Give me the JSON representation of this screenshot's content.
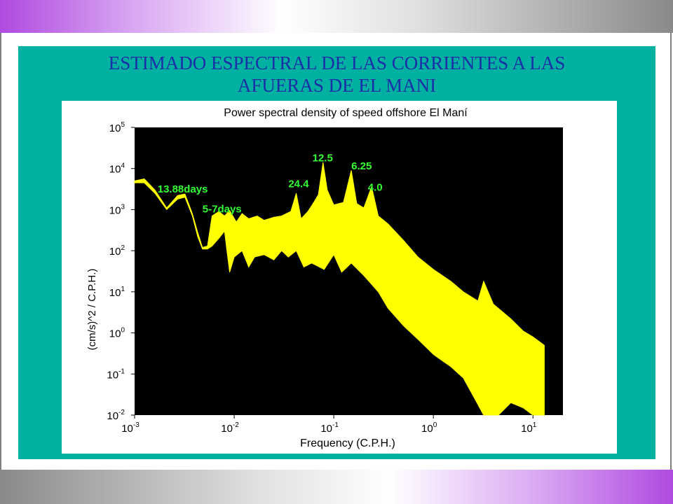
{
  "slide": {
    "title_line1": "ESTIMADO ESPECTRAL DE LAS CORRIENTES A LAS",
    "title_line2": "AFUERAS DE EL MANI"
  },
  "colors": {
    "teal_panel": "#00b0a0",
    "title_text": "#1a2fa8",
    "plot_background": "#000000",
    "spectrum": "#ffff00",
    "annotation": "#33ff33"
  },
  "chart_data": {
    "type": "line",
    "title": "Power spectral density of speed offshore El Maní",
    "xlabel": "Frequency (C.P.H.)",
    "ylabel": "(cm/s)^2 / C.P.H.)",
    "x_scale": "log",
    "y_scale": "log",
    "xlim": [
      0.001,
      20
    ],
    "ylim": [
      0.01,
      100000
    ],
    "grid": false,
    "x_ticks": [
      {
        "base": "10",
        "exp": "-3",
        "value": 0.001
      },
      {
        "base": "10",
        "exp": "-2",
        "value": 0.01
      },
      {
        "base": "10",
        "exp": "-1",
        "value": 0.1
      },
      {
        "base": "10",
        "exp": "0",
        "value": 1
      },
      {
        "base": "10",
        "exp": "1",
        "value": 10
      }
    ],
    "y_ticks": [
      {
        "base": "10",
        "exp": "5",
        "value": 100000
      },
      {
        "base": "10",
        "exp": "4",
        "value": 10000
      },
      {
        "base": "10",
        "exp": "3",
        "value": 1000
      },
      {
        "base": "10",
        "exp": "2",
        "value": 100
      },
      {
        "base": "10",
        "exp": "1",
        "value": 10
      },
      {
        "base": "10",
        "exp": "0",
        "value": 1
      },
      {
        "base": "10",
        "exp": "-1",
        "value": 0.1
      },
      {
        "base": "10",
        "exp": "-2",
        "value": 0.01
      }
    ],
    "spectrum_envelope": {
      "upper": [
        [
          0.001,
          5000
        ],
        [
          0.00125,
          5600
        ],
        [
          0.0016,
          3000
        ],
        [
          0.0021,
          1100
        ],
        [
          0.0027,
          2200
        ],
        [
          0.0032,
          2400
        ],
        [
          0.0038,
          800
        ],
        [
          0.0043,
          280
        ],
        [
          0.0048,
          120
        ],
        [
          0.0054,
          130
        ],
        [
          0.006,
          700
        ],
        [
          0.007,
          900
        ],
        [
          0.008,
          700
        ],
        [
          0.009,
          950
        ],
        [
          0.0105,
          500
        ],
        [
          0.012,
          800
        ],
        [
          0.014,
          600
        ],
        [
          0.017,
          700
        ],
        [
          0.02,
          550
        ],
        [
          0.025,
          650
        ],
        [
          0.03,
          700
        ],
        [
          0.037,
          900
        ],
        [
          0.042,
          2500
        ],
        [
          0.047,
          600
        ],
        [
          0.055,
          900
        ],
        [
          0.063,
          1500
        ],
        [
          0.07,
          2300
        ],
        [
          0.078,
          14000
        ],
        [
          0.086,
          3000
        ],
        [
          0.1,
          1300
        ],
        [
          0.125,
          1500
        ],
        [
          0.15,
          9000
        ],
        [
          0.17,
          1400
        ],
        [
          0.2,
          1100
        ],
        [
          0.24,
          3600
        ],
        [
          0.28,
          700
        ],
        [
          0.35,
          450
        ],
        [
          0.5,
          180
        ],
        [
          0.7,
          70
        ],
        [
          1,
          35
        ],
        [
          1.5,
          18
        ],
        [
          2,
          10
        ],
        [
          2.8,
          6
        ],
        [
          3.2,
          18
        ],
        [
          4,
          5
        ],
        [
          6,
          2.2
        ],
        [
          8,
          1.1
        ],
        [
          10,
          0.8
        ],
        [
          13,
          0.5
        ]
      ],
      "lower": [
        [
          13,
          0.01
        ],
        [
          10,
          0.01
        ],
        [
          8,
          0.015
        ],
        [
          6,
          0.02
        ],
        [
          4.5,
          0.01
        ],
        [
          3.2,
          0.01
        ],
        [
          2.5,
          0.03
        ],
        [
          2,
          0.08
        ],
        [
          1.5,
          0.15
        ],
        [
          1,
          0.3
        ],
        [
          0.7,
          0.7
        ],
        [
          0.5,
          1.5
        ],
        [
          0.35,
          4
        ],
        [
          0.28,
          10
        ],
        [
          0.2,
          25
        ],
        [
          0.15,
          50
        ],
        [
          0.12,
          30
        ],
        [
          0.1,
          80
        ],
        [
          0.08,
          35
        ],
        [
          0.06,
          50
        ],
        [
          0.05,
          40
        ],
        [
          0.042,
          100
        ],
        [
          0.035,
          70
        ],
        [
          0.03,
          100
        ],
        [
          0.025,
          60
        ],
        [
          0.02,
          80
        ],
        [
          0.016,
          70
        ],
        [
          0.014,
          40
        ],
        [
          0.012,
          100
        ],
        [
          0.01,
          70
        ],
        [
          0.009,
          30
        ],
        [
          0.0085,
          90
        ],
        [
          0.008,
          300
        ],
        [
          0.007,
          200
        ],
        [
          0.006,
          130
        ],
        [
          0.0054,
          110
        ],
        [
          0.0048,
          110
        ],
        [
          0.0043,
          220
        ],
        [
          0.0038,
          700
        ],
        [
          0.0032,
          2000
        ],
        [
          0.0027,
          1800
        ],
        [
          0.0021,
          1000
        ],
        [
          0.0016,
          2500
        ],
        [
          0.00125,
          4500
        ],
        [
          0.001,
          4500
        ]
      ]
    },
    "annotations": [
      {
        "text": "13.88days",
        "x": 0.0017,
        "y": 2600
      },
      {
        "text": "5-7days",
        "x": 0.0048,
        "y": 850
      },
      {
        "text": "24.4",
        "x": 0.035,
        "y": 3500
      },
      {
        "text": "12.5",
        "x": 0.061,
        "y": 15000
      },
      {
        "text": "6.25",
        "x": 0.15,
        "y": 9500
      },
      {
        "text": "4.0",
        "x": 0.22,
        "y": 2900
      }
    ]
  }
}
